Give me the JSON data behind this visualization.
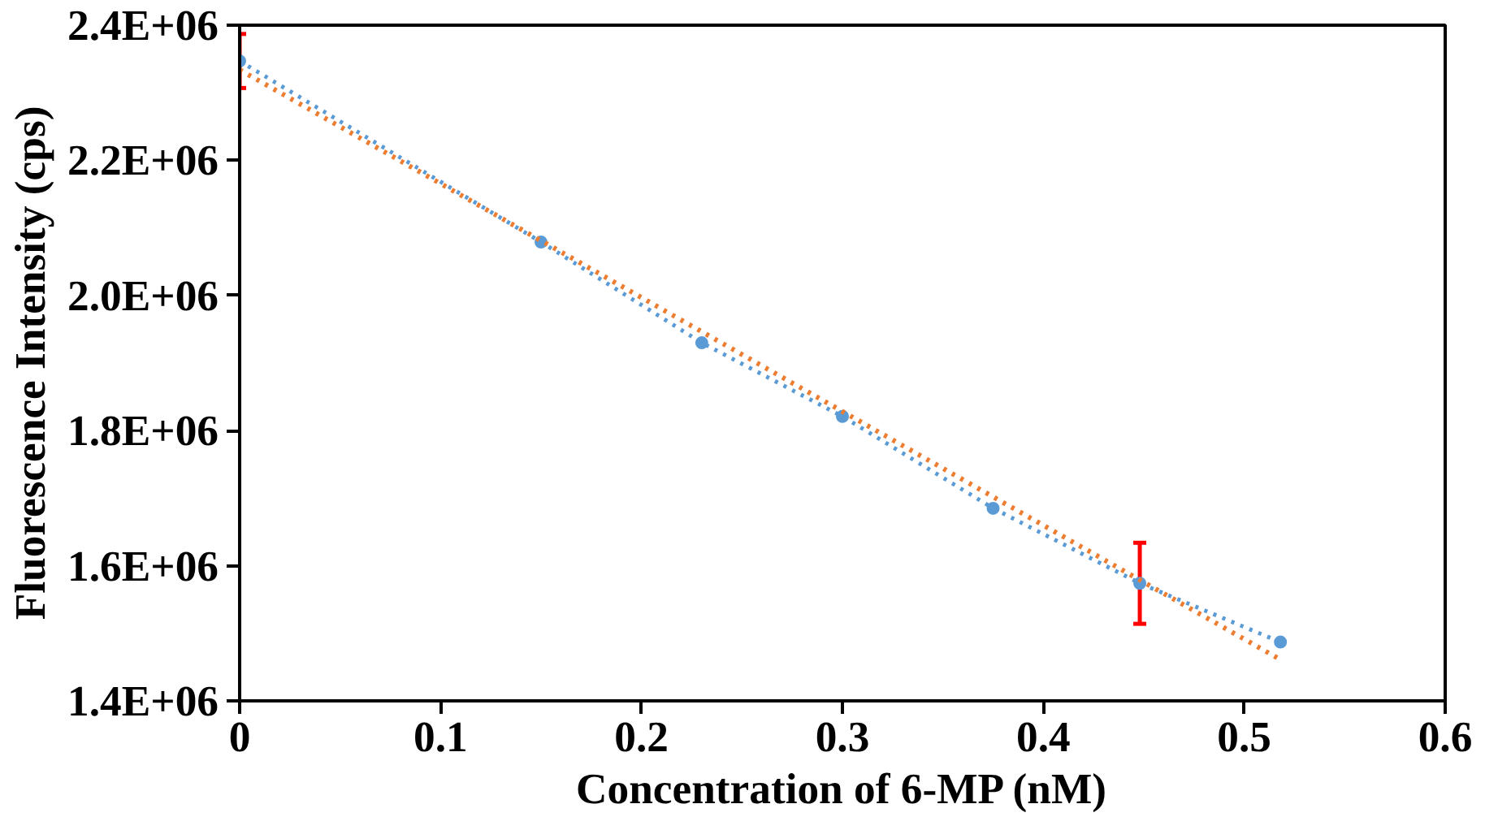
{
  "chart_data": {
    "type": "line",
    "xlabel": "Concentration of 6-MP (nM)",
    "ylabel": "Fluorescence Intensity (cps)",
    "xlim": [
      0,
      0.6
    ],
    "xticks": [
      0,
      0.1,
      0.2,
      0.3,
      0.4,
      0.5,
      0.6
    ],
    "ylim": [
      1400000,
      2400000
    ],
    "yticks": [
      {
        "value": 1400000,
        "label": "1.4E+06"
      },
      {
        "value": 1600000,
        "label": "1.6E+06"
      },
      {
        "value": 1800000,
        "label": "1.8E+06"
      },
      {
        "value": 2000000,
        "label": "2.0E+06"
      },
      {
        "value": 2200000,
        "label": "2.2E+06"
      },
      {
        "value": 2400000,
        "label": "2.4E+06"
      }
    ],
    "grid": false,
    "series": [
      {
        "color": "#5b9bd5",
        "marker": "circle",
        "line_style": "dotted",
        "x": [
          0,
          0.15,
          0.23,
          0.3,
          0.375,
          0.448,
          0.518
        ],
        "values": [
          2347000,
          2079000,
          1930000,
          1821000,
          1685000,
          1574000,
          1487000
        ],
        "errors": [
          40000,
          null,
          null,
          null,
          null,
          60000,
          null
        ]
      },
      {
        "color": "#ed7d31",
        "marker": "none",
        "line_style": "dotted",
        "x": [
          0,
          0.518
        ],
        "values": [
          2334000,
          1461000
        ]
      }
    ]
  }
}
